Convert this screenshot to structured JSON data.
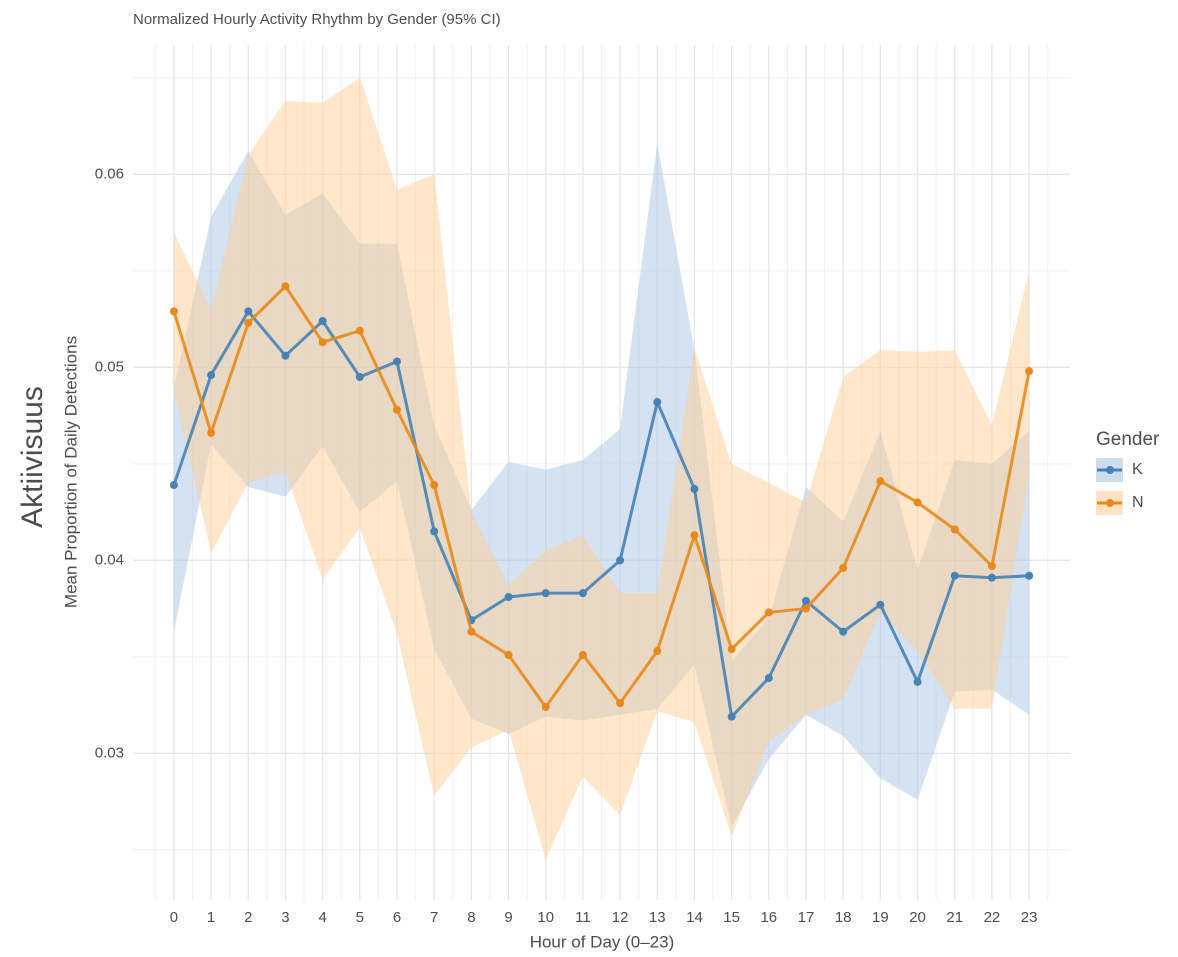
{
  "chart_data": {
    "type": "line",
    "title": "Normalized Hourly Activity Rhythm by Gender (95% CI)",
    "xlabel": "Hour of Day (0–23)",
    "ylabel": "Mean Proportion of Daily Detections",
    "side_label": "Aktiivisuus",
    "legend_title": "Gender",
    "legend": "right",
    "grid": true,
    "x": [
      0,
      1,
      2,
      3,
      4,
      5,
      6,
      7,
      8,
      9,
      10,
      11,
      12,
      13,
      14,
      15,
      16,
      17,
      18,
      19,
      20,
      21,
      22,
      23
    ],
    "xlim": [
      -1.1,
      24.1
    ],
    "xticks": [
      0,
      1,
      2,
      3,
      4,
      5,
      6,
      7,
      8,
      9,
      10,
      11,
      12,
      13,
      14,
      15,
      16,
      17,
      18,
      19,
      20,
      21,
      22,
      23
    ],
    "ylim": [
      0.0224,
      0.0667
    ],
    "yticks": [
      0.03,
      0.04,
      0.05,
      0.06
    ],
    "series": [
      {
        "name": "K",
        "color": "#4682b4",
        "band_color": "#a9c6e3",
        "values": [
          0.0439,
          0.0496,
          0.0529,
          0.0506,
          0.0524,
          0.0495,
          0.0503,
          0.0415,
          0.0369,
          0.0381,
          0.0383,
          0.0383,
          0.04,
          0.0482,
          0.0437,
          0.0319,
          0.0339,
          0.0379,
          0.0363,
          0.0377,
          0.0337,
          0.0392,
          0.0391,
          0.0392
        ],
        "lower": [
          0.0363,
          0.046,
          0.0438,
          0.0433,
          0.0459,
          0.0425,
          0.0441,
          0.0354,
          0.0318,
          0.031,
          0.0319,
          0.0317,
          0.032,
          0.0323,
          0.0346,
          0.0262,
          0.0297,
          0.032,
          0.0309,
          0.0287,
          0.0276,
          0.0332,
          0.0333,
          0.032
        ],
        "upper": [
          0.0489,
          0.0578,
          0.0612,
          0.0579,
          0.059,
          0.0564,
          0.0564,
          0.047,
          0.0426,
          0.0451,
          0.0447,
          0.0452,
          0.0468,
          0.0616,
          0.0509,
          0.0348,
          0.037,
          0.0438,
          0.042,
          0.0467,
          0.0395,
          0.0452,
          0.045,
          0.0467
        ]
      },
      {
        "name": "N",
        "color": "#e8891b",
        "band_color": "#fdcf97",
        "values": [
          0.0529,
          0.0466,
          0.0523,
          0.0542,
          0.0513,
          0.0519,
          0.0478,
          0.0439,
          0.0363,
          0.0351,
          0.0324,
          0.0351,
          0.0326,
          0.0353,
          0.0413,
          0.0354,
          0.0373,
          0.0375,
          0.0396,
          0.0441,
          0.043,
          0.0416,
          0.0397,
          0.0498
        ],
        "lower": [
          0.0488,
          0.0404,
          0.044,
          0.0446,
          0.039,
          0.0417,
          0.0362,
          0.0278,
          0.0303,
          0.0312,
          0.0245,
          0.0288,
          0.0268,
          0.0322,
          0.0316,
          0.0257,
          0.0306,
          0.032,
          0.0328,
          0.0373,
          0.0353,
          0.0323,
          0.0323,
          0.0445
        ],
        "upper": [
          0.057,
          0.053,
          0.061,
          0.0638,
          0.0637,
          0.065,
          0.0592,
          0.06,
          0.0425,
          0.0387,
          0.0405,
          0.0413,
          0.0383,
          0.0383,
          0.051,
          0.045,
          0.044,
          0.043,
          0.0495,
          0.0509,
          0.0508,
          0.0509,
          0.047,
          0.055
        ]
      }
    ]
  }
}
